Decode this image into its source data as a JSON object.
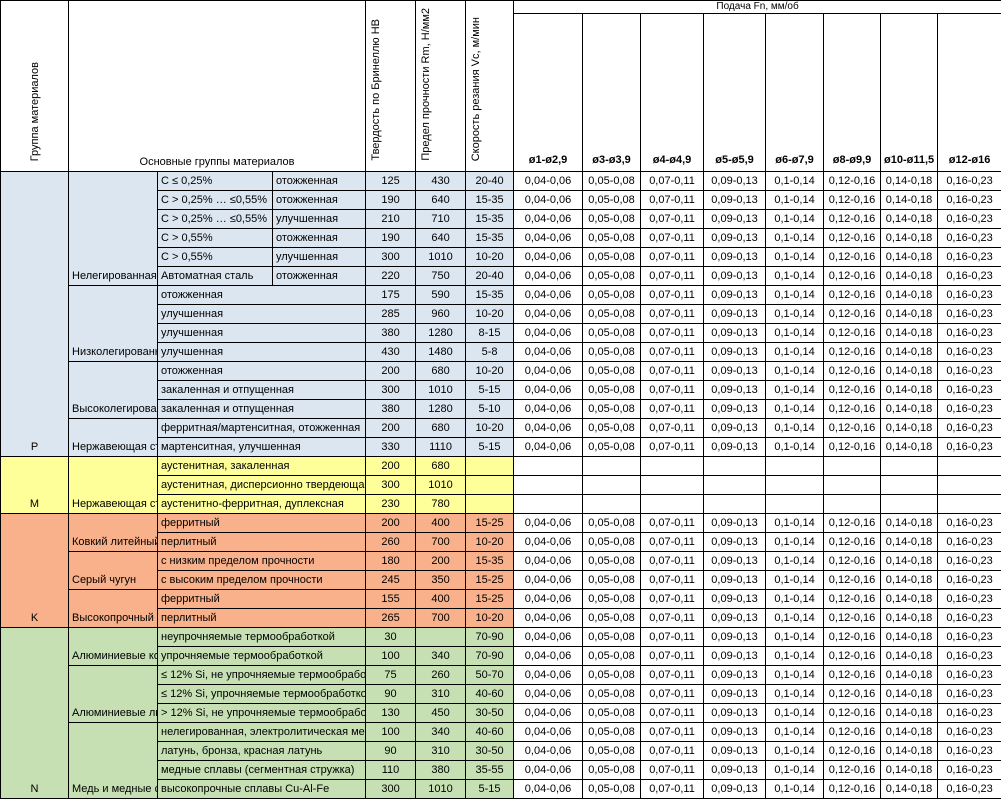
{
  "header": {
    "group": "Группа материалов",
    "main": "Основные группы материалов",
    "hb": "Твердость по Бринеллю HB",
    "rm": "Предел прочности Rm, Н/мм2",
    "vc": "Скорость резания Vc, м/мин",
    "feed_title": "Подача Fn, мм/об",
    "feed_cols": [
      "ø1-ø2,9",
      "ø3-ø3,9",
      "ø4-ø4,9",
      "ø5-ø5,9",
      "ø6-ø7,9",
      "ø8-ø9,9",
      "ø10-ø11,5",
      "ø12-ø16"
    ]
  },
  "colors": {
    "P": "#dce6f1",
    "M": "#ffff99",
    "K": "#f8b18a",
    "N": "#c6e0b4"
  },
  "groups": [
    {
      "code": "P",
      "start": 0,
      "span": 15
    },
    {
      "code": "M",
      "start": 15,
      "span": 3
    },
    {
      "code": "K",
      "start": 18,
      "span": 6
    },
    {
      "code": "N",
      "start": 24,
      "span": 9
    }
  ],
  "main_groups": [
    {
      "label": "Нелегированная с",
      "start": 0,
      "span": 6
    },
    {
      "label": "Низколегированн",
      "start": 6,
      "span": 4
    },
    {
      "label": "Высоколегирован",
      "start": 10,
      "span": 3
    },
    {
      "label": "Нержавеющая ст",
      "start": 13,
      "span": 2
    },
    {
      "label": "Нержавеющая ст",
      "start": 15,
      "span": 3
    },
    {
      "label": "Ковкий литейный",
      "start": 18,
      "span": 2
    },
    {
      "label": "Серый чугун",
      "start": 20,
      "span": 2
    },
    {
      "label": "Высокопрочный ч",
      "start": 22,
      "span": 2
    },
    {
      "label": "Алюминиевые ко",
      "start": 24,
      "span": 2
    },
    {
      "label": "Алюминиевые ли",
      "start": 26,
      "span": 3
    },
    {
      "label": "Медь и медные с",
      "start": 29,
      "span": 4
    }
  ],
  "rows": [
    {
      "g": "P",
      "sub": "C ≤ 0,25%",
      "sub2": "отожженная",
      "hb": "125",
      "rm": "430",
      "vc": "20-40",
      "feeds": [
        "0,04-0,06",
        "0,05-0,08",
        "0,07-0,11",
        "0,09-0,13",
        "0,1-0,14",
        "0,12-0,16",
        "0,14-0,18",
        "0,16-0,23"
      ]
    },
    {
      "g": "P",
      "sub": "C > 0,25% … ≤0,55%",
      "sub2": "отожженная",
      "hb": "190",
      "rm": "640",
      "vc": "15-35",
      "feeds": [
        "0,04-0,06",
        "0,05-0,08",
        "0,07-0,11",
        "0,09-0,13",
        "0,1-0,14",
        "0,12-0,16",
        "0,14-0,18",
        "0,16-0,23"
      ]
    },
    {
      "g": "P",
      "sub": "C > 0,25% … ≤0,55%",
      "sub2": "улучшенная",
      "hb": "210",
      "rm": "710",
      "vc": "15-35",
      "feeds": [
        "0,04-0,06",
        "0,05-0,08",
        "0,07-0,11",
        "0,09-0,13",
        "0,1-0,14",
        "0,12-0,16",
        "0,14-0,18",
        "0,16-0,23"
      ]
    },
    {
      "g": "P",
      "sub": "C > 0,55%",
      "sub2": "отожженная",
      "hb": "190",
      "rm": "640",
      "vc": "15-35",
      "feeds": [
        "0,04-0,06",
        "0,05-0,08",
        "0,07-0,11",
        "0,09-0,13",
        "0,1-0,14",
        "0,12-0,16",
        "0,14-0,18",
        "0,16-0,23"
      ]
    },
    {
      "g": "P",
      "sub": "C > 0,55%",
      "sub2": "улучшенная",
      "hb": "300",
      "rm": "1010",
      "vc": "10-20",
      "feeds": [
        "0,04-0,06",
        "0,05-0,08",
        "0,07-0,11",
        "0,09-0,13",
        "0,1-0,14",
        "0,12-0,16",
        "0,14-0,18",
        "0,16-0,23"
      ]
    },
    {
      "g": "P",
      "sub": "Автоматная сталь",
      "sub2": "отожженная",
      "hb": "220",
      "rm": "750",
      "vc": "20-40",
      "feeds": [
        "0,04-0,06",
        "0,05-0,08",
        "0,07-0,11",
        "0,09-0,13",
        "0,1-0,14",
        "0,12-0,16",
        "0,14-0,18",
        "0,16-0,23"
      ]
    },
    {
      "g": "P",
      "sub": "отожженная",
      "hb": "175",
      "rm": "590",
      "vc": "15-35",
      "feeds": [
        "0,04-0,06",
        "0,05-0,08",
        "0,07-0,11",
        "0,09-0,13",
        "0,1-0,14",
        "0,12-0,16",
        "0,14-0,18",
        "0,16-0,23"
      ]
    },
    {
      "g": "P",
      "sub": "улучшенная",
      "hb": "285",
      "rm": "960",
      "vc": "10-20",
      "feeds": [
        "0,04-0,06",
        "0,05-0,08",
        "0,07-0,11",
        "0,09-0,13",
        "0,1-0,14",
        "0,12-0,16",
        "0,14-0,18",
        "0,16-0,23"
      ]
    },
    {
      "g": "P",
      "sub": "улучшенная",
      "hb": "380",
      "rm": "1280",
      "vc": "8-15",
      "feeds": [
        "0,04-0,06",
        "0,05-0,08",
        "0,07-0,11",
        "0,09-0,13",
        "0,1-0,14",
        "0,12-0,16",
        "0,14-0,18",
        "0,16-0,23"
      ]
    },
    {
      "g": "P",
      "sub": "улучшенная",
      "hb": "430",
      "rm": "1480",
      "vc": "5-8",
      "feeds": [
        "0,04-0,06",
        "0,05-0,08",
        "0,07-0,11",
        "0,09-0,13",
        "0,1-0,14",
        "0,12-0,16",
        "0,14-0,18",
        "0,16-0,23"
      ]
    },
    {
      "g": "P",
      "sub": "отожженная",
      "hb": "200",
      "rm": "680",
      "vc": "10-20",
      "feeds": [
        "0,04-0,06",
        "0,05-0,08",
        "0,07-0,11",
        "0,09-0,13",
        "0,1-0,14",
        "0,12-0,16",
        "0,14-0,18",
        "0,16-0,23"
      ]
    },
    {
      "g": "P",
      "sub": "закаленная и отпущенная",
      "hb": "300",
      "rm": "1010",
      "vc": "5-15",
      "feeds": [
        "0,04-0,06",
        "0,05-0,08",
        "0,07-0,11",
        "0,09-0,13",
        "0,1-0,14",
        "0,12-0,16",
        "0,14-0,18",
        "0,16-0,23"
      ]
    },
    {
      "g": "P",
      "sub": "закаленная и отпущенная",
      "hb": "380",
      "rm": "1280",
      "vc": "5-10",
      "feeds": [
        "0,04-0,06",
        "0,05-0,08",
        "0,07-0,11",
        "0,09-0,13",
        "0,1-0,14",
        "0,12-0,16",
        "0,14-0,18",
        "0,16-0,23"
      ]
    },
    {
      "g": "P",
      "sub": "ферритная/мартенситная, отожженная",
      "hb": "200",
      "rm": "680",
      "vc": "10-20",
      "feeds": [
        "0,04-0,06",
        "0,05-0,08",
        "0,07-0,11",
        "0,09-0,13",
        "0,1-0,14",
        "0,12-0,16",
        "0,14-0,18",
        "0,16-0,23"
      ]
    },
    {
      "g": "P",
      "sub": "мартенситная, улучшенная",
      "hb": "330",
      "rm": "1110",
      "vc": "5-15",
      "feeds": [
        "0,04-0,06",
        "0,05-0,08",
        "0,07-0,11",
        "0,09-0,13",
        "0,1-0,14",
        "0,12-0,16",
        "0,14-0,18",
        "0,16-0,23"
      ]
    },
    {
      "g": "M",
      "sub": "аустенитная, закаленная",
      "hb": "200",
      "rm": "680",
      "vc": "",
      "feeds": [
        "",
        "",
        "",
        "",
        "",
        "",
        "",
        ""
      ]
    },
    {
      "g": "M",
      "sub": "аустенитная, дисперсионно твердеюща",
      "hb": "300",
      "rm": "1010",
      "vc": "",
      "feeds": [
        "",
        "",
        "",
        "",
        "",
        "",
        "",
        ""
      ]
    },
    {
      "g": "M",
      "sub": "аустенитно-ферритная, дуплексная",
      "hb": "230",
      "rm": "780",
      "vc": "",
      "feeds": [
        "",
        "",
        "",
        "",
        "",
        "",
        "",
        ""
      ]
    },
    {
      "g": "K",
      "sub": "ферритный",
      "hb": "200",
      "rm": "400",
      "vc": "15-25",
      "feeds": [
        "0,04-0,06",
        "0,05-0,08",
        "0,07-0,11",
        "0,09-0,13",
        "0,1-0,14",
        "0,12-0,16",
        "0,14-0,18",
        "0,16-0,23"
      ]
    },
    {
      "g": "K",
      "sub": "перлитный",
      "hb": "260",
      "rm": "700",
      "vc": "10-20",
      "feeds": [
        "0,04-0,06",
        "0,05-0,08",
        "0,07-0,11",
        "0,09-0,13",
        "0,1-0,14",
        "0,12-0,16",
        "0,14-0,18",
        "0,16-0,23"
      ]
    },
    {
      "g": "K",
      "sub": "с низким пределом прочности",
      "hb": "180",
      "rm": "200",
      "vc": "15-35",
      "feeds": [
        "0,04-0,06",
        "0,05-0,08",
        "0,07-0,11",
        "0,09-0,13",
        "0,1-0,14",
        "0,12-0,16",
        "0,14-0,18",
        "0,16-0,23"
      ]
    },
    {
      "g": "K",
      "sub": "с высоким пределом прочности",
      "hb": "245",
      "rm": "350",
      "vc": "15-25",
      "feeds": [
        "0,04-0,06",
        "0,05-0,08",
        "0,07-0,11",
        "0,09-0,13",
        "0,1-0,14",
        "0,12-0,16",
        "0,14-0,18",
        "0,16-0,23"
      ]
    },
    {
      "g": "K",
      "sub": "ферритный",
      "hb": "155",
      "rm": "400",
      "vc": "15-25",
      "feeds": [
        "0,04-0,06",
        "0,05-0,08",
        "0,07-0,11",
        "0,09-0,13",
        "0,1-0,14",
        "0,12-0,16",
        "0,14-0,18",
        "0,16-0,23"
      ]
    },
    {
      "g": "K",
      "sub": "перлитный",
      "hb": "265",
      "rm": "700",
      "vc": "10-20",
      "feeds": [
        "0,04-0,06",
        "0,05-0,08",
        "0,07-0,11",
        "0,09-0,13",
        "0,1-0,14",
        "0,12-0,16",
        "0,14-0,18",
        "0,16-0,23"
      ]
    },
    {
      "g": "N",
      "sub": "неупрочняемые термообработкой",
      "hb": "30",
      "rm": "",
      "vc": "70-90",
      "feeds": [
        "0,04-0,06",
        "0,05-0,08",
        "0,07-0,11",
        "0,09-0,13",
        "0,1-0,14",
        "0,12-0,16",
        "0,14-0,18",
        "0,16-0,23"
      ]
    },
    {
      "g": "N",
      "sub": "упрочняемые термообработкой",
      "hb": "100",
      "rm": "340",
      "vc": "70-90",
      "feeds": [
        "0,04-0,06",
        "0,05-0,08",
        "0,07-0,11",
        "0,09-0,13",
        "0,1-0,14",
        "0,12-0,16",
        "0,14-0,18",
        "0,16-0,23"
      ]
    },
    {
      "g": "N",
      "sub": "≤ 12% Si, не упрочняемые термообрабо",
      "hb": "75",
      "rm": "260",
      "vc": "50-70",
      "feeds": [
        "0,04-0,06",
        "0,05-0,08",
        "0,07-0,11",
        "0,09-0,13",
        "0,1-0,14",
        "0,12-0,16",
        "0,14-0,18",
        "0,16-0,23"
      ]
    },
    {
      "g": "N",
      "sub": "≤ 12% Si, упрочняемые термообработко",
      "hb": "90",
      "rm": "310",
      "vc": "40-60",
      "feeds": [
        "0,04-0,06",
        "0,05-0,08",
        "0,07-0,11",
        "0,09-0,13",
        "0,1-0,14",
        "0,12-0,16",
        "0,14-0,18",
        "0,16-0,23"
      ]
    },
    {
      "g": "N",
      "sub": "> 12% Si, не упрочняемые термообрабо",
      "hb": "130",
      "rm": "450",
      "vc": "30-50",
      "feeds": [
        "0,04-0,06",
        "0,05-0,08",
        "0,07-0,11",
        "0,09-0,13",
        "0,1-0,14",
        "0,12-0,16",
        "0,14-0,18",
        "0,16-0,23"
      ]
    },
    {
      "g": "N",
      "sub": "нелегированная, электролитическая ме",
      "hb": "100",
      "rm": "340",
      "vc": "40-60",
      "feeds": [
        "0,04-0,06",
        "0,05-0,08",
        "0,07-0,11",
        "0,09-0,13",
        "0,1-0,14",
        "0,12-0,16",
        "0,14-0,18",
        "0,16-0,23"
      ]
    },
    {
      "g": "N",
      "sub": "латунь, бронза, красная латунь",
      "hb": "90",
      "rm": "310",
      "vc": "30-50",
      "feeds": [
        "0,04-0,06",
        "0,05-0,08",
        "0,07-0,11",
        "0,09-0,13",
        "0,1-0,14",
        "0,12-0,16",
        "0,14-0,18",
        "0,16-0,23"
      ]
    },
    {
      "g": "N",
      "sub": "медные сплавы (сегментная стружка)",
      "hb": "110",
      "rm": "380",
      "vc": "35-55",
      "feeds": [
        "0,04-0,06",
        "0,05-0,08",
        "0,07-0,11",
        "0,09-0,13",
        "0,1-0,14",
        "0,12-0,16",
        "0,14-0,18",
        "0,16-0,23"
      ]
    },
    {
      "g": "N",
      "sub": "высокопрочные сплавы Cu-Al-Fe",
      "hb": "300",
      "rm": "1010",
      "vc": "5-15",
      "feeds": [
        "0,04-0,06",
        "0,05-0,08",
        "0,07-0,11",
        "0,09-0,13",
        "0,1-0,14",
        "0,12-0,16",
        "0,14-0,18",
        "0,16-0,23"
      ]
    }
  ]
}
